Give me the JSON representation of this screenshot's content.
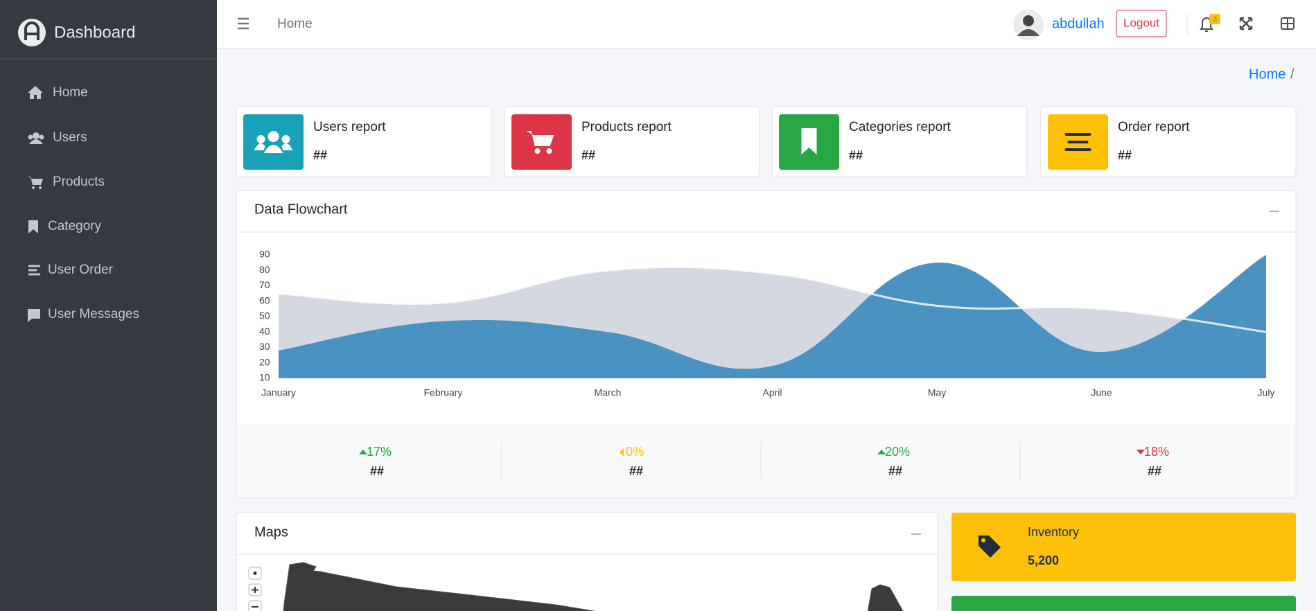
{
  "sidebar": {
    "brand": "Dashboard",
    "menu": [
      "Home",
      "Users",
      "Products",
      "Category",
      "User Order",
      "User Messages"
    ]
  },
  "header": {
    "nav_link": "Home",
    "user": "abdullah",
    "logout": "Logout",
    "notifications": "3"
  },
  "breadcrumb": {
    "items": [
      "Home"
    ],
    "separator": "/"
  },
  "info_boxes": [
    {
      "title": "Users report",
      "value": "##",
      "color": "#17a2b8"
    },
    {
      "title": "Products report",
      "value": "##",
      "color": "#dc3545"
    },
    {
      "title": "Categories report",
      "value": "##",
      "color": "#28a745"
    },
    {
      "title": "Order report",
      "value": "##",
      "color": "#ffc107"
    }
  ],
  "flowchart": {
    "title": "Data Flowchart",
    "chart": {
      "type": "area",
      "categories": [
        "January",
        "February",
        "March",
        "April",
        "May",
        "June",
        "July"
      ],
      "ylim": [
        10,
        90
      ],
      "yticks": [
        10,
        20,
        30,
        40,
        50,
        60,
        70,
        80,
        90
      ],
      "series": [
        {
          "color": "#d2d6de",
          "values": [
            65,
            59,
            80,
            78,
            57,
            55,
            40
          ]
        },
        {
          "color": "#4a92c2",
          "values": [
            28,
            47,
            40,
            18,
            85,
            27,
            90
          ]
        }
      ]
    },
    "stats": [
      {
        "change": "17%",
        "value": "##",
        "color": "#28a745",
        "direction": "up"
      },
      {
        "change": "0%",
        "value": "##",
        "color": "#ffc107",
        "direction": "left"
      },
      {
        "change": "20%",
        "value": "##",
        "color": "#28a745",
        "direction": "up"
      },
      {
        "change": "18%",
        "value": "##",
        "color": "#dc3545",
        "direction": "down"
      }
    ]
  },
  "maps": {
    "title": "Maps"
  },
  "inventory": {
    "title": "Inventory",
    "value": "5,200"
  }
}
